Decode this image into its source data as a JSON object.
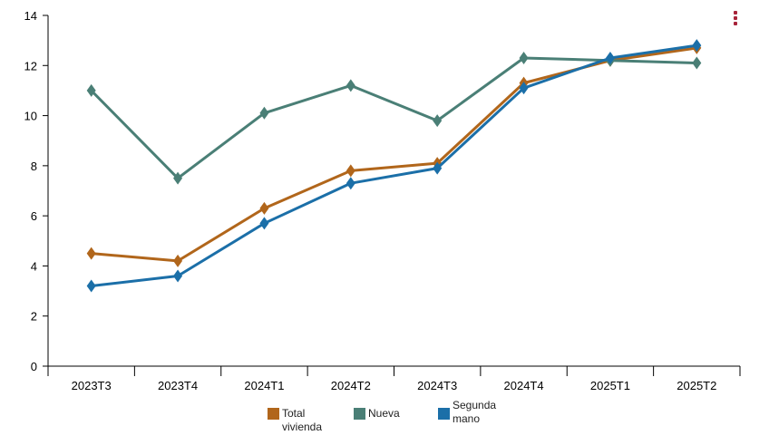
{
  "chart_data": {
    "type": "line",
    "categories": [
      "2023T3",
      "2023T4",
      "2024T1",
      "2024T2",
      "2024T3",
      "2024T4",
      "2025T1",
      "2025T2"
    ],
    "ylim": [
      0,
      14
    ],
    "yticks": [
      0,
      2,
      4,
      6,
      8,
      10,
      12,
      14
    ],
    "grid": false,
    "legend_position": "bottom",
    "series": [
      {
        "name": "Total vivienda",
        "color": "#b1661b",
        "values": [
          4.5,
          4.2,
          6.3,
          7.8,
          8.1,
          11.3,
          12.2,
          12.7
        ]
      },
      {
        "name": "Nueva",
        "color": "#4a7f76",
        "values": [
          11.0,
          7.5,
          10.1,
          11.2,
          9.8,
          12.3,
          12.2,
          12.1
        ]
      },
      {
        "name": "Segunda mano",
        "color": "#1b6fa8",
        "values": [
          3.2,
          3.6,
          5.7,
          7.3,
          7.9,
          11.1,
          12.3,
          12.8
        ]
      }
    ]
  },
  "menu": {
    "icon": "vertical-dots-icon",
    "color": "#a8243a"
  }
}
